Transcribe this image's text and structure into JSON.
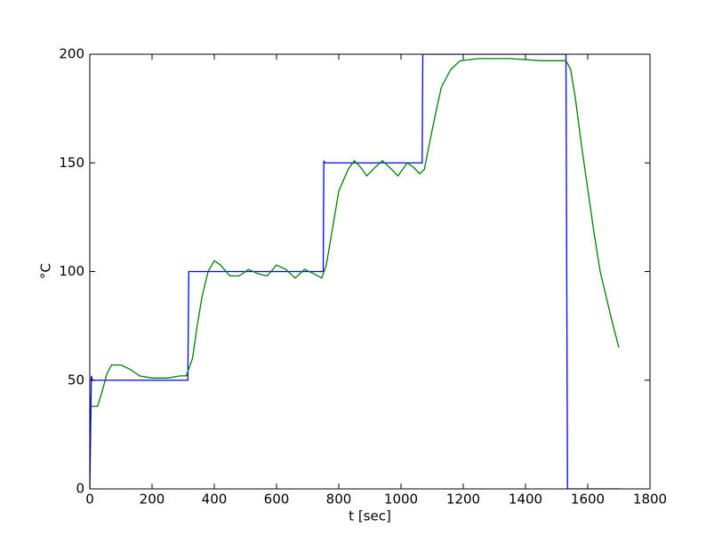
{
  "chart_data": {
    "type": "line",
    "x_label": "t [sec]",
    "y_label": "°C",
    "xlim": [
      0,
      1800
    ],
    "xticks": [
      0,
      200,
      400,
      600,
      800,
      1000,
      1200,
      1400,
      1600,
      1800
    ],
    "ylim": [
      0,
      200
    ],
    "yticks": [
      0,
      50,
      100,
      150,
      200
    ],
    "grid": false,
    "series": [
      {
        "color": "#0000ff",
        "x": [
          0,
          5,
          8,
          315,
          318,
          750,
          752,
          755,
          1068,
          1070,
          1530,
          1535,
          1700
        ],
        "values": [
          0,
          52,
          50,
          50,
          100,
          100,
          151,
          150,
          150,
          200,
          200,
          0,
          0
        ]
      },
      {
        "color": "#008000",
        "x": [
          5,
          25,
          40,
          55,
          70,
          100,
          130,
          160,
          200,
          250,
          290,
          310,
          330,
          345,
          360,
          380,
          400,
          420,
          450,
          480,
          510,
          540,
          570,
          600,
          630,
          660,
          690,
          720,
          745,
          760,
          780,
          800,
          830,
          850,
          870,
          890,
          910,
          940,
          970,
          990,
          1020,
          1040,
          1060,
          1075,
          1090,
          1110,
          1130,
          1160,
          1190,
          1250,
          1350,
          1450,
          1530,
          1545,
          1560,
          1580,
          1600,
          1620,
          1640,
          1660,
          1680,
          1700
        ],
        "values": [
          38,
          38,
          45,
          53,
          57,
          57,
          55,
          52,
          51,
          51,
          52,
          52,
          60,
          75,
          88,
          100,
          105,
          103,
          98,
          98,
          101,
          99,
          98,
          103,
          101,
          97,
          101,
          99,
          97,
          103,
          120,
          137,
          147,
          151,
          148,
          144,
          147,
          151,
          147,
          144,
          150,
          148,
          145,
          147,
          158,
          172,
          185,
          193,
          197,
          198,
          198,
          197,
          197,
          193,
          180,
          158,
          138,
          118,
          100,
          88,
          76,
          65
        ]
      }
    ]
  }
}
